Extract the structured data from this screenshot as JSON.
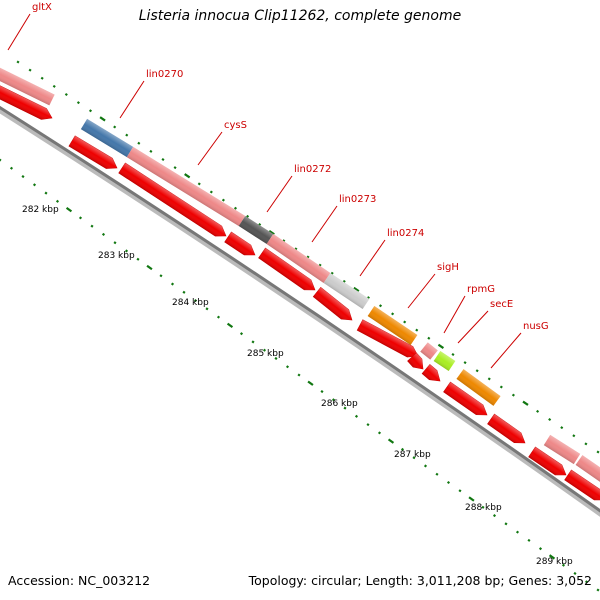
{
  "title": "Listeria innocua Clip11262, complete genome",
  "footer": {
    "accession": "Accession: NC_003212",
    "summary": "Topology: circular; Length: 3,011,208 bp; Genes: 3,052"
  },
  "colors": {
    "cds_arrow": "#ee0000",
    "feature_pink": "#ee8888",
    "feature_blue": "#4477aa",
    "feature_dark": "#555555",
    "feature_light_gray": "#cccccc",
    "feature_orange": "#ee8800",
    "feature_lime": "#aaee22",
    "label_red": "#cc0000",
    "tick_green": "#117711",
    "backbone_gray": "#888888"
  },
  "scale": {
    "labels": [
      "282 kbp",
      "283 kbp",
      "284 kbp",
      "285 kbp",
      "286 kbp",
      "287 kbp",
      "288 kbp",
      "289 kbp"
    ]
  },
  "genes": [
    {
      "name": "gltX",
      "color": "feature_pink"
    },
    {
      "name": "lin0270",
      "color": "feature_blue"
    },
    {
      "name": "cysS",
      "color": "feature_pink"
    },
    {
      "name": "lin0272",
      "color": "feature_dark"
    },
    {
      "name": "lin0273",
      "color": "feature_pink"
    },
    {
      "name": "lin0274",
      "color": "feature_light_gray"
    },
    {
      "name": "sigH",
      "color": "feature_orange"
    },
    {
      "name": "rpmG",
      "color": "feature_pink"
    },
    {
      "name": "secE",
      "color": "feature_lime"
    },
    {
      "name": "nusG",
      "color": "feature_orange"
    }
  ]
}
